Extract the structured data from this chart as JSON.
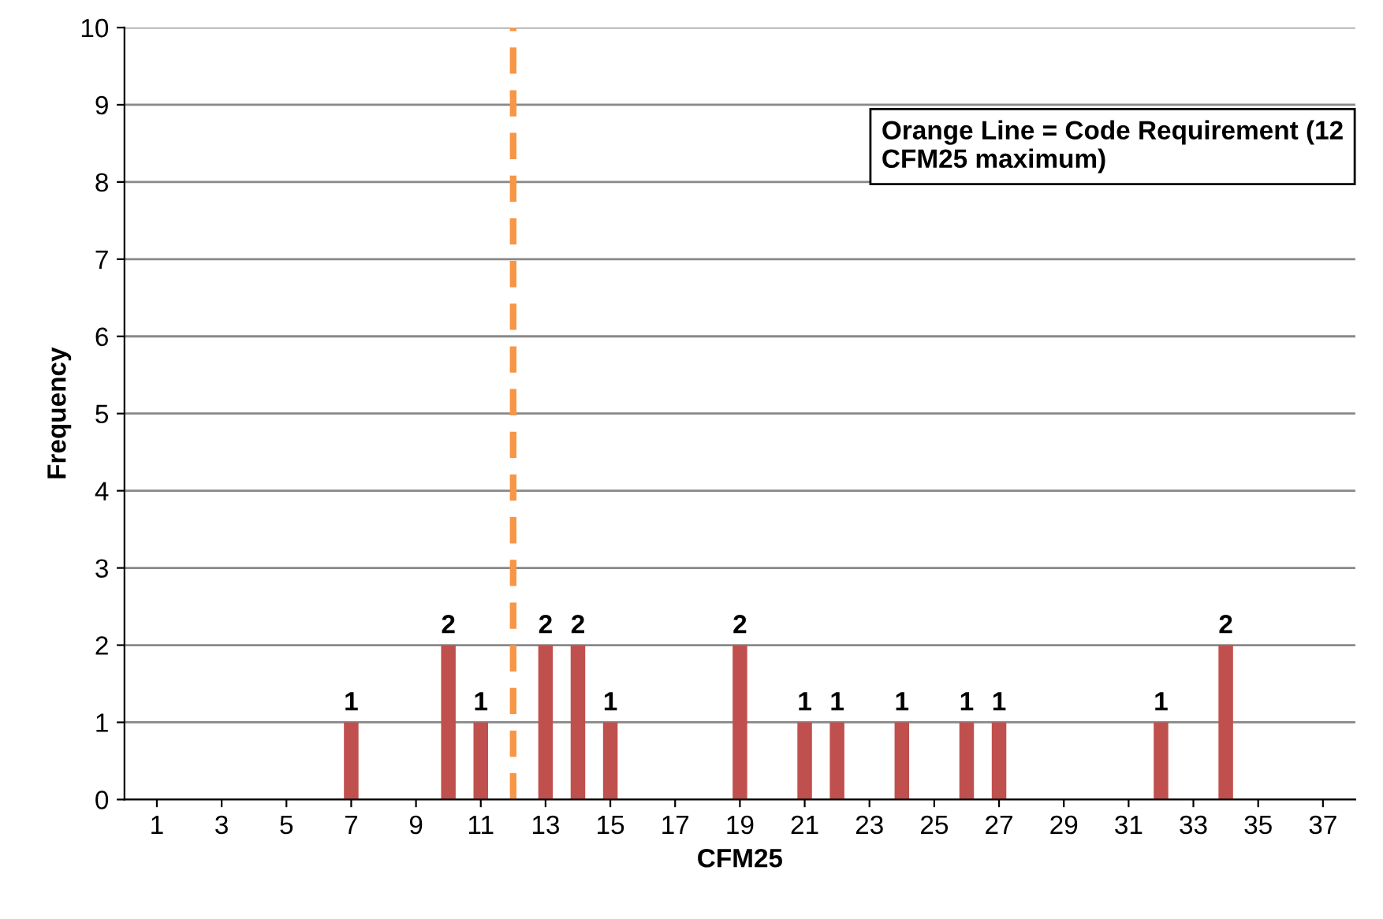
{
  "chart_data": {
    "type": "bar",
    "xlabel": "CFM25",
    "ylabel": "Frequency",
    "x": [
      7,
      10,
      11,
      13,
      14,
      15,
      19,
      21,
      22,
      24,
      26,
      27,
      32,
      34
    ],
    "values": [
      1,
      2,
      1,
      2,
      2,
      1,
      2,
      1,
      1,
      1,
      1,
      1,
      1,
      2
    ],
    "color": "#c0504d",
    "data_labels": true,
    "xlim": [
      0,
      38
    ],
    "xticks": [
      1,
      3,
      5,
      7,
      9,
      11,
      13,
      15,
      17,
      19,
      21,
      23,
      25,
      27,
      29,
      31,
      33,
      35,
      37
    ],
    "ylim": [
      0,
      10
    ],
    "yticks": [
      0,
      1,
      2,
      3,
      4,
      5,
      6,
      7,
      8,
      9,
      10
    ],
    "grid": "y",
    "ref_lines": [
      {
        "axis": "x",
        "value": 12,
        "color": "#f79646",
        "line_style": "dashed"
      }
    ],
    "annotations": [
      "Orange Line = Code Requirement (12 CFM25 maximum)"
    ]
  }
}
